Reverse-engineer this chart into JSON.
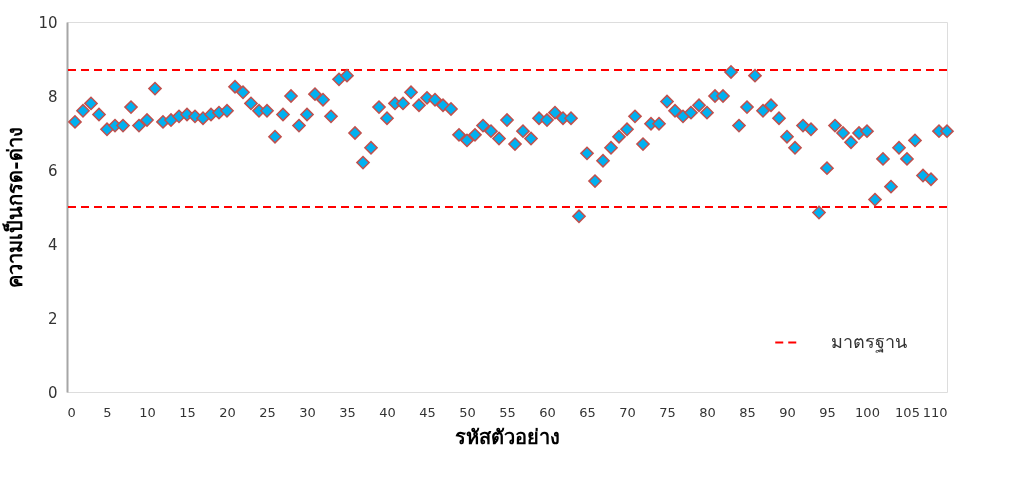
{
  "chart_data": {
    "type": "scatter",
    "xlabel": "รหัสตัวอย่าง",
    "ylabel": "ความเป็นกรด-ด่าง",
    "x": [
      1,
      2,
      3,
      4,
      5,
      6,
      7,
      8,
      9,
      10,
      11,
      12,
      13,
      14,
      15,
      16,
      17,
      18,
      19,
      20,
      21,
      22,
      23,
      24,
      25,
      26,
      27,
      28,
      29,
      30,
      31,
      32,
      33,
      34,
      35,
      36,
      37,
      38,
      39,
      40,
      41,
      42,
      43,
      44,
      45,
      46,
      47,
      48,
      49,
      50,
      51,
      52,
      53,
      54,
      55,
      56,
      57,
      58,
      59,
      60,
      61,
      62,
      63,
      64,
      65,
      66,
      67,
      68,
      69,
      70,
      71,
      72,
      73,
      74,
      75,
      76,
      77,
      78,
      79,
      80,
      81,
      82,
      83,
      84,
      85,
      86,
      87,
      88,
      89,
      90,
      91,
      92,
      93,
      94,
      95,
      96,
      97,
      98,
      99,
      100,
      101,
      102,
      103,
      104,
      105,
      106,
      107,
      108,
      109,
      110
    ],
    "series": [
      {
        "color": "#00b0f0",
        "values": [
          7.3,
          7.6,
          7.8,
          7.5,
          7.1,
          7.2,
          7.2,
          7.7,
          7.2,
          7.35,
          8.2,
          7.3,
          7.35,
          7.45,
          7.5,
          7.45,
          7.4,
          7.5,
          7.55,
          7.6,
          8.25,
          8.1,
          7.8,
          7.6,
          7.6,
          6.9,
          7.5,
          8.0,
          7.2,
          7.5,
          8.05,
          7.9,
          7.45,
          8.45,
          8.55,
          7.0,
          6.2,
          6.6,
          7.7,
          7.4,
          7.8,
          7.8,
          8.1,
          7.75,
          7.95,
          7.9,
          7.75,
          7.65,
          6.95,
          6.8,
          6.95,
          7.2,
          7.05,
          6.85,
          7.35,
          6.7,
          7.05,
          6.85,
          7.4,
          7.35,
          7.55,
          7.4,
          7.4,
          4.75,
          6.45,
          5.7,
          6.25,
          6.6,
          6.9,
          7.1,
          7.45,
          6.7,
          7.25,
          7.25,
          7.85,
          7.6,
          7.45,
          7.55,
          7.75,
          7.55,
          8.0,
          8.0,
          8.65,
          7.2,
          7.7,
          8.55,
          7.6,
          7.75,
          7.4,
          6.9,
          6.6,
          7.2,
          7.1,
          4.85,
          6.05,
          7.2,
          7.0,
          6.75,
          7.0,
          7.05,
          5.2,
          6.3,
          5.55,
          6.6,
          6.3,
          6.8,
          5.85,
          5.75,
          7.05,
          7.05
        ]
      }
    ],
    "marker": "diamond",
    "xlim": [
      0,
      110
    ],
    "xticks": [
      0,
      5,
      10,
      15,
      20,
      25,
      30,
      35,
      40,
      45,
      50,
      55,
      60,
      65,
      70,
      75,
      80,
      85,
      90,
      95,
      100,
      105,
      110
    ],
    "ylim": [
      0,
      10
    ],
    "yticks": [
      0,
      2,
      4,
      6,
      8,
      10
    ],
    "ref_lines": [
      {
        "axis": "y",
        "value": 8.7,
        "label": "มาตรฐาน",
        "color": "#ff0000",
        "line_style": "dashed"
      },
      {
        "axis": "y",
        "value": 5.0,
        "label": null,
        "color": "#ff0000",
        "line_style": "dashed"
      }
    ],
    "legend": "bottom right",
    "grid": false
  }
}
